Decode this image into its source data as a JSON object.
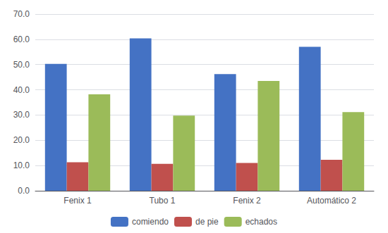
{
  "chart_data": {
    "type": "bar",
    "categories": [
      "Fenix 1",
      "Tubo 1",
      "Fenix 2",
      "Automático 2"
    ],
    "series": [
      {
        "name": "comiendo",
        "color": "#4472C4",
        "values": [
          50.3,
          60.4,
          46.2,
          57.0
        ]
      },
      {
        "name": "de pie",
        "color": "#C0504D",
        "values": [
          11.3,
          10.7,
          11.0,
          12.3
        ]
      },
      {
        "name": "echados",
        "color": "#9BBB59",
        "values": [
          38.2,
          29.8,
          43.5,
          31.2
        ]
      }
    ],
    "ylim": [
      0,
      70
    ],
    "yticks": [
      {
        "value": 0,
        "label": "0.0"
      },
      {
        "value": 10,
        "label": "10.0"
      },
      {
        "value": 20,
        "label": "20.0"
      },
      {
        "value": 30,
        "label": "30.0"
      },
      {
        "value": 40,
        "label": "40.0"
      },
      {
        "value": 50,
        "label": "50.0"
      },
      {
        "value": 60,
        "label": "60.0"
      },
      {
        "value": 70,
        "label": "70.0"
      }
    ],
    "grid": true,
    "legend": "bottom"
  }
}
